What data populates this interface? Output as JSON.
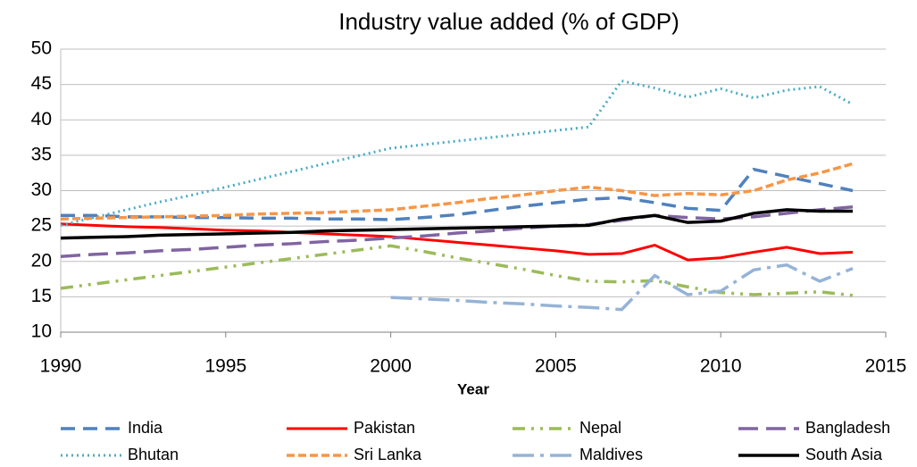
{
  "chart_data": {
    "type": "line",
    "title": "Industry value added (% of GDP)",
    "x_label": "Year",
    "x": [
      1990,
      1991,
      1992,
      1993,
      1994,
      1995,
      1996,
      1997,
      1998,
      1999,
      2000,
      2001,
      2002,
      2003,
      2004,
      2005,
      2006,
      2007,
      2008,
      2009,
      2010,
      2011,
      2012,
      2013,
      2014
    ],
    "xlim": [
      1990,
      2015
    ],
    "xticks": [
      1990,
      1995,
      2000,
      2005,
      2010,
      2015
    ],
    "ylim": [
      10,
      50
    ],
    "yticks": [
      10,
      15,
      20,
      25,
      30,
      35,
      40,
      45,
      50
    ],
    "grid": true,
    "legend": "bottom",
    "series": [
      {
        "name": "India",
        "color": "#4f81bd",
        "dash": "16,9",
        "width": 3.5,
        "values": [
          26.5,
          26.5,
          26.3,
          26.3,
          26.2,
          26.2,
          26.1,
          26.1,
          26.0,
          26.0,
          25.9,
          26.2,
          26.6,
          27.2,
          27.8,
          28.3,
          28.8,
          29.0,
          28.3,
          27.5,
          27.2,
          33.0,
          32.0,
          31.0,
          30.0
        ]
      },
      {
        "name": "Pakistan",
        "color": "#ff0000",
        "dash": "",
        "width": 3,
        "values": [
          25.3,
          25.1,
          24.9,
          24.8,
          24.6,
          24.4,
          24.3,
          24.1,
          23.9,
          23.7,
          23.5,
          23.1,
          22.7,
          22.3,
          21.9,
          21.5,
          21.0,
          21.1,
          22.3,
          20.2,
          20.5,
          21.3,
          22.0,
          21.1,
          21.3
        ]
      },
      {
        "name": "Nepal",
        "color": "#9bbb59",
        "dash": "14,7,3,7,3,7",
        "width": 3.5,
        "values": [
          16.2,
          16.8,
          17.4,
          18.0,
          18.6,
          19.2,
          19.8,
          20.4,
          21.0,
          21.6,
          22.2,
          21.4,
          20.5,
          19.7,
          18.9,
          18.0,
          17.2,
          17.1,
          17.3,
          16.4,
          15.6,
          15.3,
          15.5,
          15.7,
          15.2
        ]
      },
      {
        "name": "Bangladesh",
        "color": "#8064a2",
        "dash": "22,9",
        "width": 3.5,
        "values": [
          20.7,
          21.0,
          21.2,
          21.5,
          21.7,
          22.0,
          22.3,
          22.5,
          22.8,
          23.0,
          23.3,
          23.6,
          24.0,
          24.3,
          24.7,
          25.0,
          25.2,
          25.8,
          26.5,
          26.2,
          26.0,
          26.3,
          26.8,
          27.3,
          27.7
        ]
      },
      {
        "name": "Bhutan",
        "color": "#4bacc6",
        "dash": "2,4",
        "width": 3,
        "values": [
          25.1,
          26.2,
          27.3,
          28.4,
          29.4,
          30.5,
          31.6,
          32.7,
          33.8,
          34.9,
          36.0,
          36.5,
          37.0,
          37.5,
          38.0,
          38.5,
          39.0,
          45.5,
          44.5,
          43.2,
          44.4,
          43.1,
          44.2,
          44.7,
          42.2
        ]
      },
      {
        "name": "Sri Lanka",
        "color": "#f79646",
        "dash": "9,4",
        "width": 3.5,
        "values": [
          26.0,
          26.1,
          26.2,
          26.3,
          26.4,
          26.5,
          26.7,
          26.8,
          26.9,
          27.1,
          27.3,
          27.8,
          28.3,
          28.9,
          29.4,
          30.0,
          30.5,
          30.0,
          29.3,
          29.6,
          29.4,
          30.0,
          31.5,
          32.5,
          33.8
        ]
      },
      {
        "name": "Maldives",
        "color": "#95b3d7",
        "dash": "24,7,4,7",
        "width": 3.5,
        "values": [
          null,
          null,
          null,
          null,
          null,
          null,
          null,
          null,
          null,
          null,
          14.9,
          14.7,
          14.5,
          14.2,
          14.0,
          13.7,
          13.5,
          13.2,
          18.0,
          15.3,
          15.8,
          18.8,
          19.5,
          17.2,
          19.0
        ]
      },
      {
        "name": "South Asia",
        "color": "#000000",
        "dash": "",
        "width": 3.5,
        "values": [
          23.3,
          23.4,
          23.5,
          23.7,
          23.8,
          23.9,
          24.0,
          24.1,
          24.3,
          24.4,
          24.5,
          24.6,
          24.7,
          24.8,
          24.9,
          25.0,
          25.1,
          26.0,
          26.5,
          25.5,
          25.7,
          26.8,
          27.3,
          27.1,
          27.1
        ]
      }
    ]
  }
}
